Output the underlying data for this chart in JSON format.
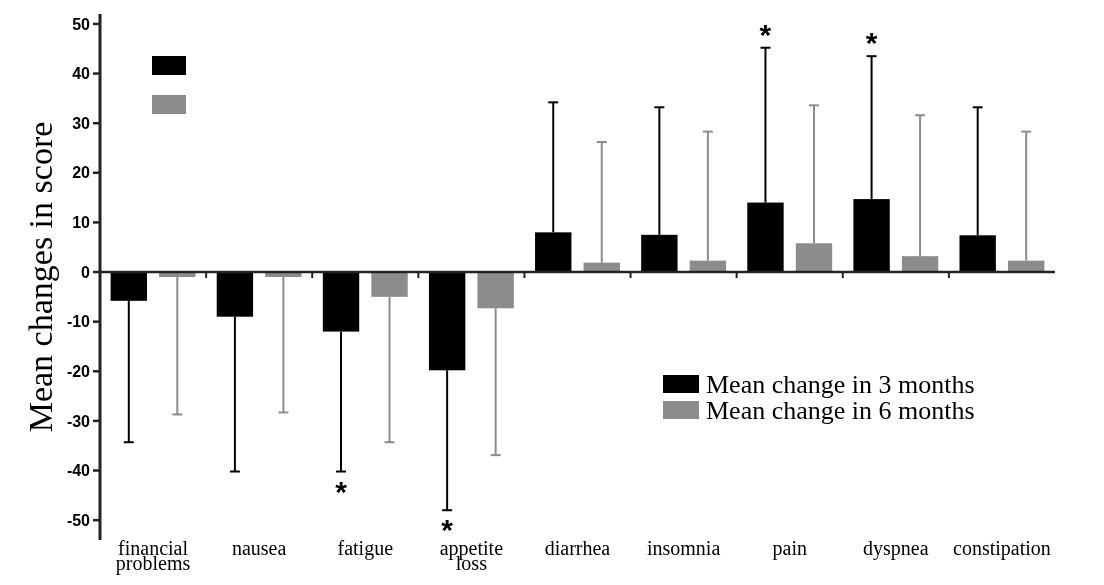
{
  "chart_data": {
    "type": "bar",
    "ylabel": "Mean changes in score",
    "categories": [
      "financial problems",
      "nausea",
      "fatigue",
      "appetite loss",
      "diarrhea",
      "insomnia",
      "pain",
      "dyspnea",
      "constipation"
    ],
    "series": [
      {
        "name": "Mean change in 3 months",
        "color": "#000000",
        "values": [
          -5.8,
          -9,
          -12,
          -19.8,
          8,
          7.5,
          14,
          14.7,
          7.4
        ],
        "errors": [
          [
            -34.3,
            -5.8
          ],
          [
            -40.2,
            -9
          ],
          [
            -40.2,
            -12
          ],
          [
            -48,
            -19.8
          ],
          [
            8,
            34.2
          ],
          [
            7.5,
            33.2
          ],
          [
            14,
            45.2
          ],
          [
            14.7,
            43.5
          ],
          [
            7.4,
            33.2
          ]
        ]
      },
      {
        "name": "Mean change in 6 months",
        "color": "#8c8c8c",
        "values": [
          -1,
          -1,
          -5,
          -7.3,
          1.9,
          2.3,
          5.8,
          3.2,
          2.3
        ],
        "errors": [
          [
            -28.7,
            -1
          ],
          [
            -28.3,
            -1
          ],
          [
            -34.3,
            -5
          ],
          [
            -36.9,
            -7.3
          ],
          [
            1.9,
            26.2
          ],
          [
            2.3,
            28.3
          ],
          [
            5.8,
            33.6
          ],
          [
            3.2,
            31.6
          ],
          [
            2.3,
            28.3
          ]
        ]
      }
    ],
    "ylim": [
      -54,
      52
    ],
    "yticks": [
      -50,
      -40,
      -30,
      -20,
      -10,
      0,
      10,
      20,
      30,
      40,
      50
    ],
    "legend": "bottom right",
    "annotations": [
      "*",
      "*",
      "*",
      "*"
    ]
  }
}
